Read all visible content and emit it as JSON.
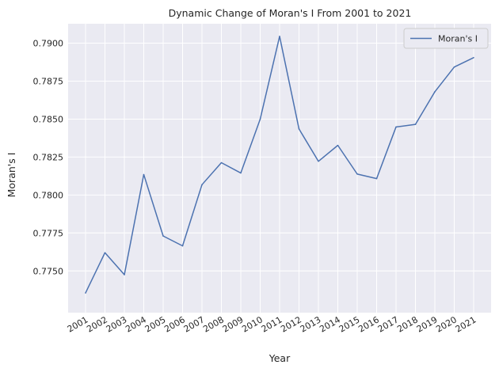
{
  "chart_data": {
    "type": "line",
    "title": "Dynamic Change of Moran's I From 2001 to 2021",
    "xlabel": "Year",
    "ylabel": "Moran's I",
    "categories": [
      "2001",
      "2002",
      "2003",
      "2004",
      "2005",
      "2006",
      "2007",
      "2008",
      "2009",
      "2010",
      "2011",
      "2012",
      "2013",
      "2014",
      "2015",
      "2016",
      "2017",
      "2018",
      "2019",
      "2020",
      "2021"
    ],
    "series": [
      {
        "name": "Moran's I",
        "color": "#4c72b0",
        "values": [
          0.77355,
          0.7762,
          0.77475,
          0.78135,
          0.7773,
          0.77665,
          0.78068,
          0.78213,
          0.78145,
          0.785,
          0.79045,
          0.78435,
          0.78222,
          0.78327,
          0.78138,
          0.78108,
          0.78448,
          0.78465,
          0.7868,
          0.78843,
          0.78905
        ]
      }
    ],
    "yticks": [
      "0.7750",
      "0.7775",
      "0.7800",
      "0.7825",
      "0.7850",
      "0.7875",
      "0.7900"
    ],
    "ytick_values": [
      0.775,
      0.7775,
      0.78,
      0.7825,
      0.785,
      0.7875,
      0.79
    ],
    "ylim": [
      0.77225,
      0.79128
    ],
    "grid": true,
    "legend_position": "top-right",
    "colors": {
      "plot_background": "#eaeaf2",
      "grid": "#ffffff",
      "line": "#4c72b0"
    }
  }
}
